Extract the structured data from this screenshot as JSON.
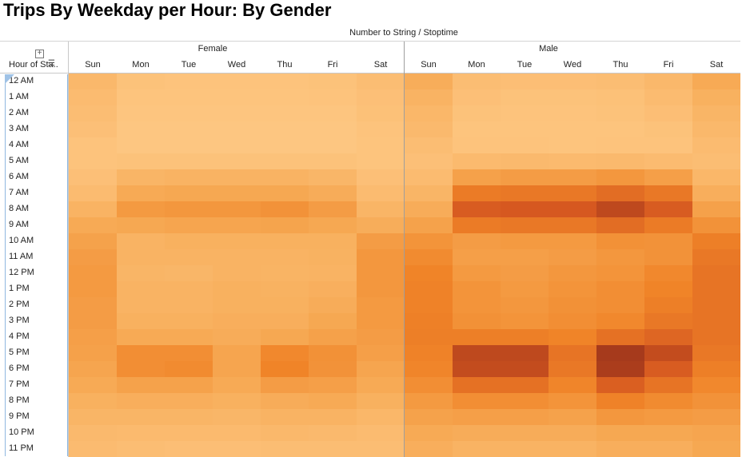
{
  "title": "Trips By Weekday per Hour: By Gender",
  "subtitle": "Number to String  /  Stoptime",
  "row_header": "Hour of Sta..",
  "icons": {
    "expand": "plus-box-icon",
    "sort": "sort-descending-icon"
  },
  "colors": {
    "low": "#fec784",
    "mid": "#f08a2c",
    "high": "#a63a1c"
  },
  "chart_data": {
    "type": "heatmap",
    "title": "Trips By Weekday per Hour: By Gender",
    "column_groups": [
      "Female",
      "Male"
    ],
    "days": [
      "Sun",
      "Mon",
      "Tue",
      "Wed",
      "Thu",
      "Fri",
      "Sat"
    ],
    "hours": [
      "12 AM",
      "1 AM",
      "2 AM",
      "3 AM",
      "4 AM",
      "5 AM",
      "6 AM",
      "7 AM",
      "8 AM",
      "9 AM",
      "10 AM",
      "11 AM",
      "12 PM",
      "1 PM",
      "2 PM",
      "3 PM",
      "4 PM",
      "5 PM",
      "6 PM",
      "7 PM",
      "8 PM",
      "9 PM",
      "10 PM",
      "11 PM"
    ],
    "scale": "relative intensity 0-100 (legend not shown)",
    "values": {
      "Female": [
        [
          15,
          6,
          5,
          5,
          5,
          6,
          10
        ],
        [
          12,
          4,
          4,
          4,
          4,
          5,
          8
        ],
        [
          10,
          3,
          3,
          3,
          3,
          3,
          7
        ],
        [
          8,
          2,
          2,
          2,
          2,
          2,
          5
        ],
        [
          5,
          2,
          2,
          2,
          2,
          2,
          4
        ],
        [
          5,
          6,
          6,
          6,
          6,
          6,
          4
        ],
        [
          8,
          18,
          20,
          20,
          20,
          17,
          8
        ],
        [
          12,
          28,
          30,
          30,
          30,
          26,
          12
        ],
        [
          20,
          40,
          42,
          42,
          45,
          38,
          18
        ],
        [
          28,
          30,
          32,
          32,
          33,
          30,
          25
        ],
        [
          34,
          20,
          22,
          22,
          22,
          22,
          38
        ],
        [
          38,
          20,
          20,
          20,
          20,
          21,
          42
        ],
        [
          40,
          18,
          17,
          20,
          19,
          20,
          42
        ],
        [
          40,
          20,
          20,
          22,
          21,
          23,
          42
        ],
        [
          38,
          20,
          20,
          22,
          22,
          26,
          40
        ],
        [
          38,
          22,
          22,
          24,
          24,
          30,
          40
        ],
        [
          36,
          28,
          28,
          26,
          30,
          35,
          38
        ],
        [
          35,
          48,
          48,
          32,
          52,
          46,
          36
        ],
        [
          32,
          48,
          50,
          32,
          55,
          45,
          32
        ],
        [
          28,
          34,
          34,
          28,
          38,
          36,
          28
        ],
        [
          22,
          24,
          24,
          22,
          26,
          28,
          22
        ],
        [
          18,
          18,
          18,
          17,
          20,
          20,
          16
        ],
        [
          14,
          13,
          13,
          13,
          15,
          14,
          12
        ],
        [
          12,
          10,
          9,
          9,
          10,
          10,
          10
        ]
      ],
      "Male": [
        [
          25,
          10,
          9,
          9,
          10,
          15,
          28
        ],
        [
          20,
          8,
          6,
          6,
          7,
          12,
          22
        ],
        [
          16,
          6,
          5,
          5,
          6,
          9,
          18
        ],
        [
          14,
          4,
          4,
          4,
          4,
          6,
          15
        ],
        [
          10,
          5,
          5,
          4,
          5,
          5,
          12
        ],
        [
          8,
          13,
          14,
          13,
          14,
          12,
          10
        ],
        [
          12,
          35,
          38,
          38,
          42,
          36,
          16
        ],
        [
          18,
          60,
          62,
          62,
          68,
          62,
          24
        ],
        [
          26,
          78,
          80,
          80,
          90,
          78,
          35
        ],
        [
          34,
          60,
          62,
          62,
          68,
          60,
          45
        ],
        [
          44,
          38,
          40,
          40,
          46,
          45,
          58
        ],
        [
          50,
          36,
          36,
          38,
          42,
          45,
          62
        ],
        [
          55,
          40,
          38,
          42,
          44,
          52,
          64
        ],
        [
          56,
          44,
          40,
          44,
          48,
          55,
          64
        ],
        [
          56,
          44,
          42,
          46,
          48,
          58,
          64
        ],
        [
          57,
          46,
          44,
          48,
          52,
          62,
          64
        ],
        [
          58,
          58,
          58,
          55,
          66,
          72,
          64
        ],
        [
          56,
          90,
          90,
          64,
          100,
          88,
          62
        ],
        [
          54,
          88,
          88,
          62,
          98,
          78,
          58
        ],
        [
          48,
          66,
          66,
          54,
          76,
          64,
          52
        ],
        [
          40,
          48,
          48,
          44,
          56,
          50,
          45
        ],
        [
          34,
          36,
          36,
          34,
          42,
          40,
          38
        ],
        [
          28,
          26,
          26,
          26,
          30,
          30,
          32
        ],
        [
          24,
          20,
          20,
          20,
          24,
          24,
          30
        ]
      ]
    }
  }
}
